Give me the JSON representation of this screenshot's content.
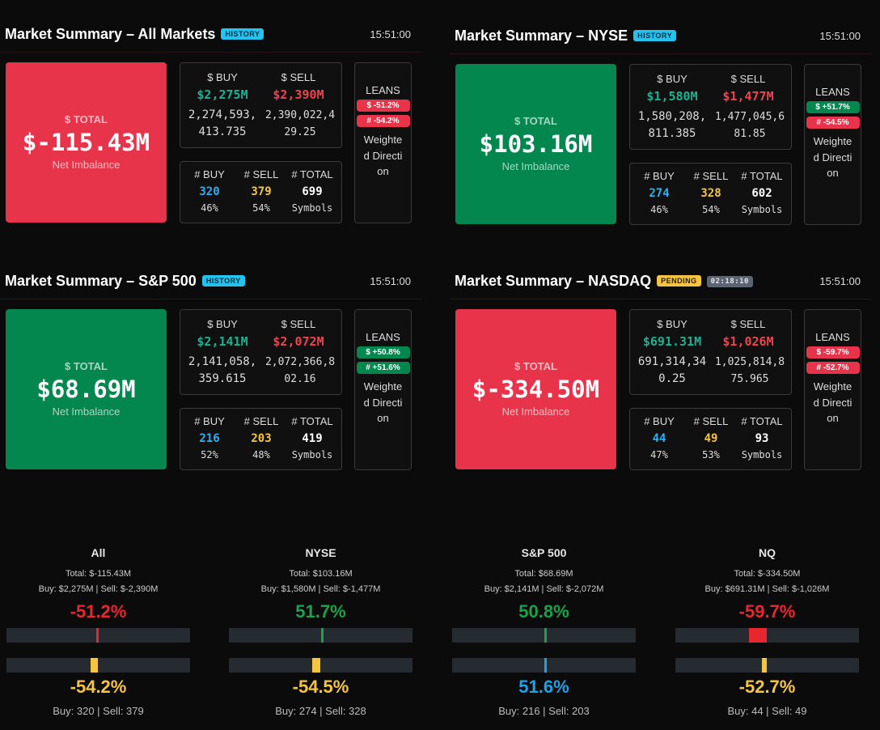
{
  "panels": [
    {
      "title": "Market Summary – All Markets",
      "badges": [
        {
          "text": "HISTORY",
          "color": "#22c3ee",
          "text_color": "#0b2b3a"
        }
      ],
      "time": "15:51:00",
      "total": {
        "label": "$ TOTAL",
        "value": "$-115.43M",
        "caption": "Net Imbalance",
        "color": "#e8344a"
      },
      "dollars": {
        "buy_label": "$ BUY",
        "sell_label": "$ SELL",
        "buy": "$2,275M",
        "sell": "$2,390M",
        "buy_exact": "2,274,593,413.735",
        "sell_exact": "2,390,022,429.25"
      },
      "counts": {
        "headers": [
          "# BUY",
          "# SELL",
          "# TOTAL"
        ],
        "values": [
          320,
          379,
          699
        ],
        "subs": [
          "46%",
          "54%",
          "Symbols"
        ]
      },
      "leans": {
        "label": "LEANS",
        "items": [
          {
            "text": "$ -51.2%",
            "color": "#e8344a"
          },
          {
            "text": "# -54.2%",
            "color": "#e8344a"
          }
        ],
        "caption": "Weighted Direction"
      }
    },
    {
      "title": "Market Summary – NYSE",
      "badges": [
        {
          "text": "HISTORY",
          "color": "#22c3ee",
          "text_color": "#0b2b3a"
        }
      ],
      "time": "15:51:00",
      "total": {
        "label": "$ TOTAL",
        "value": "$103.16M",
        "caption": "Net Imbalance",
        "color": "#03874f"
      },
      "dollars": {
        "buy_label": "$ BUY",
        "sell_label": "$ SELL",
        "buy": "$1,580M",
        "sell": "$1,477M",
        "buy_exact": "1,580,208,811.385",
        "sell_exact": "1,477,045,681.85"
      },
      "counts": {
        "headers": [
          "# BUY",
          "# SELL",
          "# TOTAL"
        ],
        "values": [
          274,
          328,
          602
        ],
        "subs": [
          "46%",
          "54%",
          "Symbols"
        ]
      },
      "leans": {
        "label": "LEANS",
        "items": [
          {
            "text": "$ +51.7%",
            "color": "#03874f"
          },
          {
            "text": "# -54.5%",
            "color": "#e8344a"
          }
        ],
        "caption": "Weighted Direction"
      }
    },
    {
      "title": "Market Summary – S&P 500",
      "badges": [
        {
          "text": "HISTORY",
          "color": "#22c3ee",
          "text_color": "#0b2b3a"
        }
      ],
      "time": "15:51:00",
      "total": {
        "label": "$ TOTAL",
        "value": "$68.69M",
        "caption": "Net Imbalance",
        "color": "#03874f"
      },
      "dollars": {
        "buy_label": "$ BUY",
        "sell_label": "$ SELL",
        "buy": "$2,141M",
        "sell": "$2,072M",
        "buy_exact": "2,141,058,359.615",
        "sell_exact": "2,072,366,802.16"
      },
      "counts": {
        "headers": [
          "# BUY",
          "# SELL",
          "# TOTAL"
        ],
        "values": [
          216,
          203,
          419
        ],
        "subs": [
          "52%",
          "48%",
          "Symbols"
        ]
      },
      "leans": {
        "label": "LEANS",
        "items": [
          {
            "text": "$ +50.8%",
            "color": "#03874f"
          },
          {
            "text": "# +51.6%",
            "color": "#03874f"
          }
        ],
        "caption": "Weighted Direction"
      }
    },
    {
      "title": "Market Summary – NASDAQ",
      "badges": [
        {
          "text": "PENDING",
          "color": "#f5c542",
          "text_color": "#2a2000"
        },
        {
          "text": "02:18:10",
          "color": "#5b6472",
          "text_color": "#e6e6e6"
        }
      ],
      "time": "15:51:00",
      "total": {
        "label": "$ TOTAL",
        "value": "$-334.50M",
        "caption": "Net Imbalance",
        "color": "#e8344a"
      },
      "dollars": {
        "buy_label": "$ BUY",
        "sell_label": "$ SELL",
        "buy": "$691.31M",
        "sell": "$1,026M",
        "buy_exact": "691,314,340.25",
        "sell_exact": "1,025,814,875.965"
      },
      "counts": {
        "headers": [
          "# BUY",
          "# SELL",
          "# TOTAL"
        ],
        "values": [
          44,
          49,
          93
        ],
        "subs": [
          "47%",
          "53%",
          "Symbols"
        ]
      },
      "leans": {
        "label": "LEANS",
        "items": [
          {
            "text": "$ -59.7%",
            "color": "#e8344a"
          },
          {
            "text": "# -52.7%",
            "color": "#e8344a"
          }
        ],
        "caption": "Weighted Direction"
      }
    }
  ],
  "gauges": [
    {
      "name": "All",
      "total": "Total: $-115.43M",
      "buy_sell": "Buy: $2,275M | Sell: $-2,390M",
      "dollar": {
        "value": -51.2,
        "label": "-51.2%"
      },
      "count": {
        "value": -54.2,
        "label": "-54.2%"
      },
      "counts": "Buy: 320 | Sell: 379"
    },
    {
      "name": "NYSE",
      "total": "Total: $103.16M",
      "buy_sell": "Buy: $1,580M | Sell: $-1,477M",
      "dollar": {
        "value": 51.7,
        "label": "51.7%"
      },
      "count": {
        "value": -54.5,
        "label": "-54.5%"
      },
      "counts": "Buy: 274 | Sell: 328"
    },
    {
      "name": "S&P 500",
      "total": "Total: $68.69M",
      "buy_sell": "Buy: $2,141M | Sell: $-2,072M",
      "dollar": {
        "value": 50.8,
        "label": "50.8%"
      },
      "count": {
        "value": 51.6,
        "label": "51.6%"
      },
      "counts": "Buy: 216 | Sell: 203"
    },
    {
      "name": "NQ",
      "total": "Total: $-334.50M",
      "buy_sell": "Buy: $691.31M | Sell: $-1,026M",
      "dollar": {
        "value": -59.7,
        "label": "-59.7%"
      },
      "count": {
        "value": -52.7,
        "label": "-52.7%"
      },
      "counts": "Buy: 44 | Sell: 49"
    }
  ]
}
